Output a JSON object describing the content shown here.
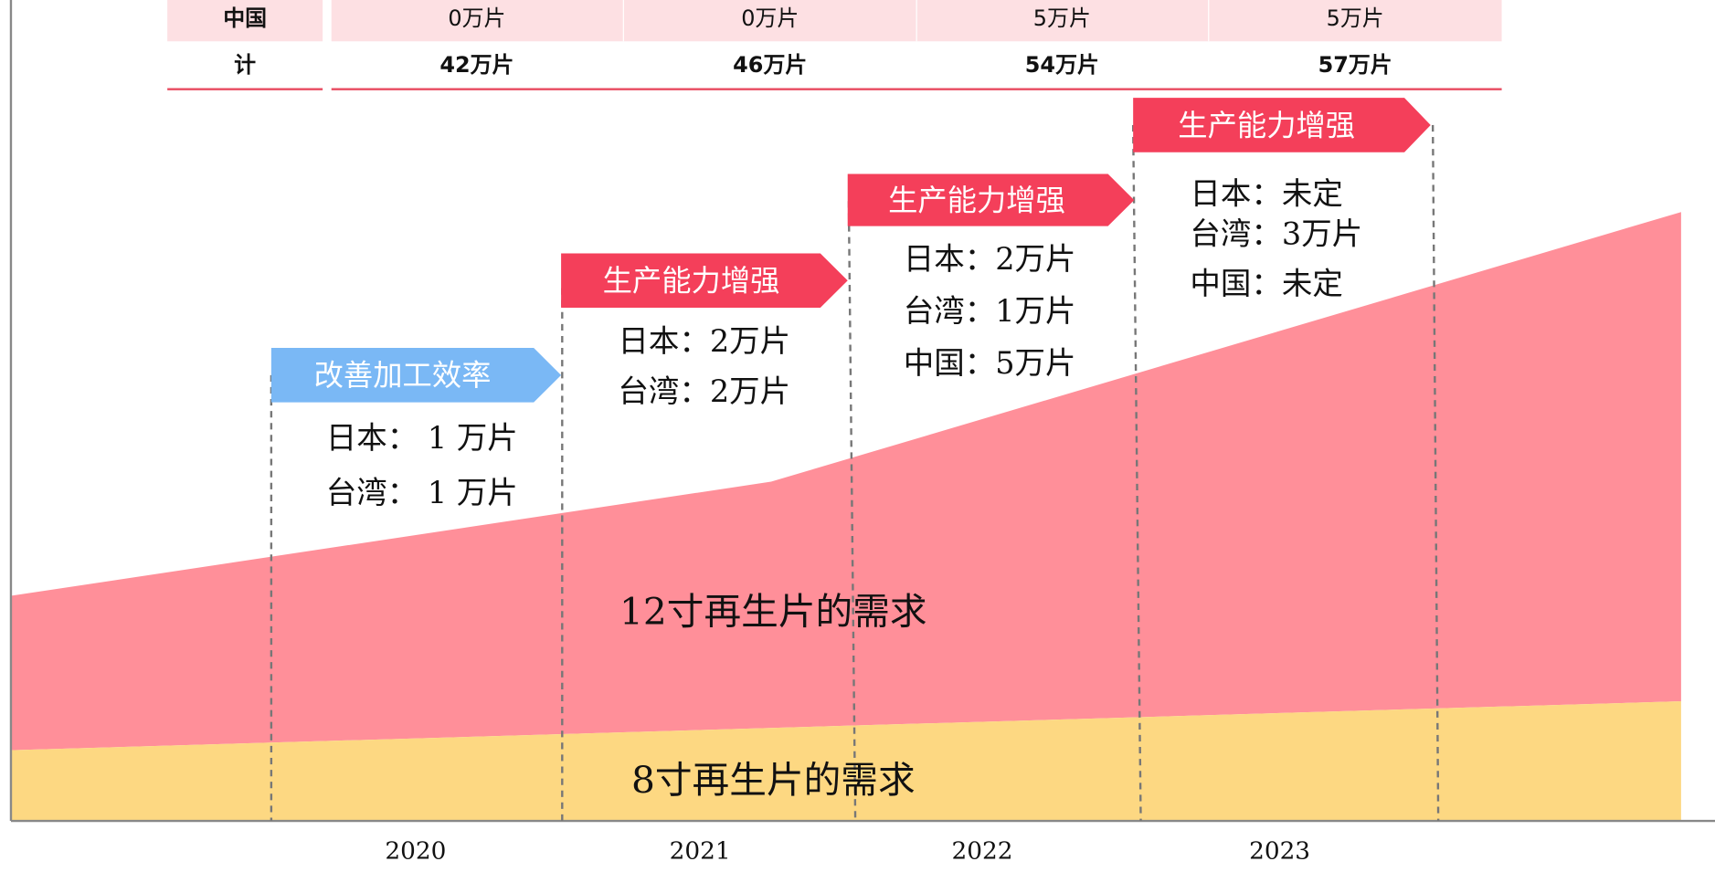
{
  "table": {
    "rows": [
      [
        "中国",
        "0万片",
        "0万片",
        "5万片",
        "5万片"
      ],
      [
        "计",
        "42万片",
        "46万片",
        "54万片",
        "57万片"
      ]
    ]
  },
  "stages": [
    {
      "label": "改善加工效率",
      "lines": [
        "日本： 1 万片",
        "台湾： 1 万片"
      ]
    },
    {
      "label": "生产能力增强",
      "lines": [
        "日本：2万片",
        "台湾：2万片"
      ]
    },
    {
      "label": "生产能力增强",
      "lines": [
        "日本：2万片",
        "台湾：1万片",
        "中国：5万片"
      ]
    },
    {
      "label": "生产能力增强",
      "lines": [
        "日本：未定",
        "台湾：3万片",
        "中国：未定"
      ]
    }
  ],
  "areas": [
    "12寸再生片的需求",
    "8寸再生片的需求"
  ],
  "years": [
    "2020",
    "2021",
    "2022",
    "2023"
  ]
}
